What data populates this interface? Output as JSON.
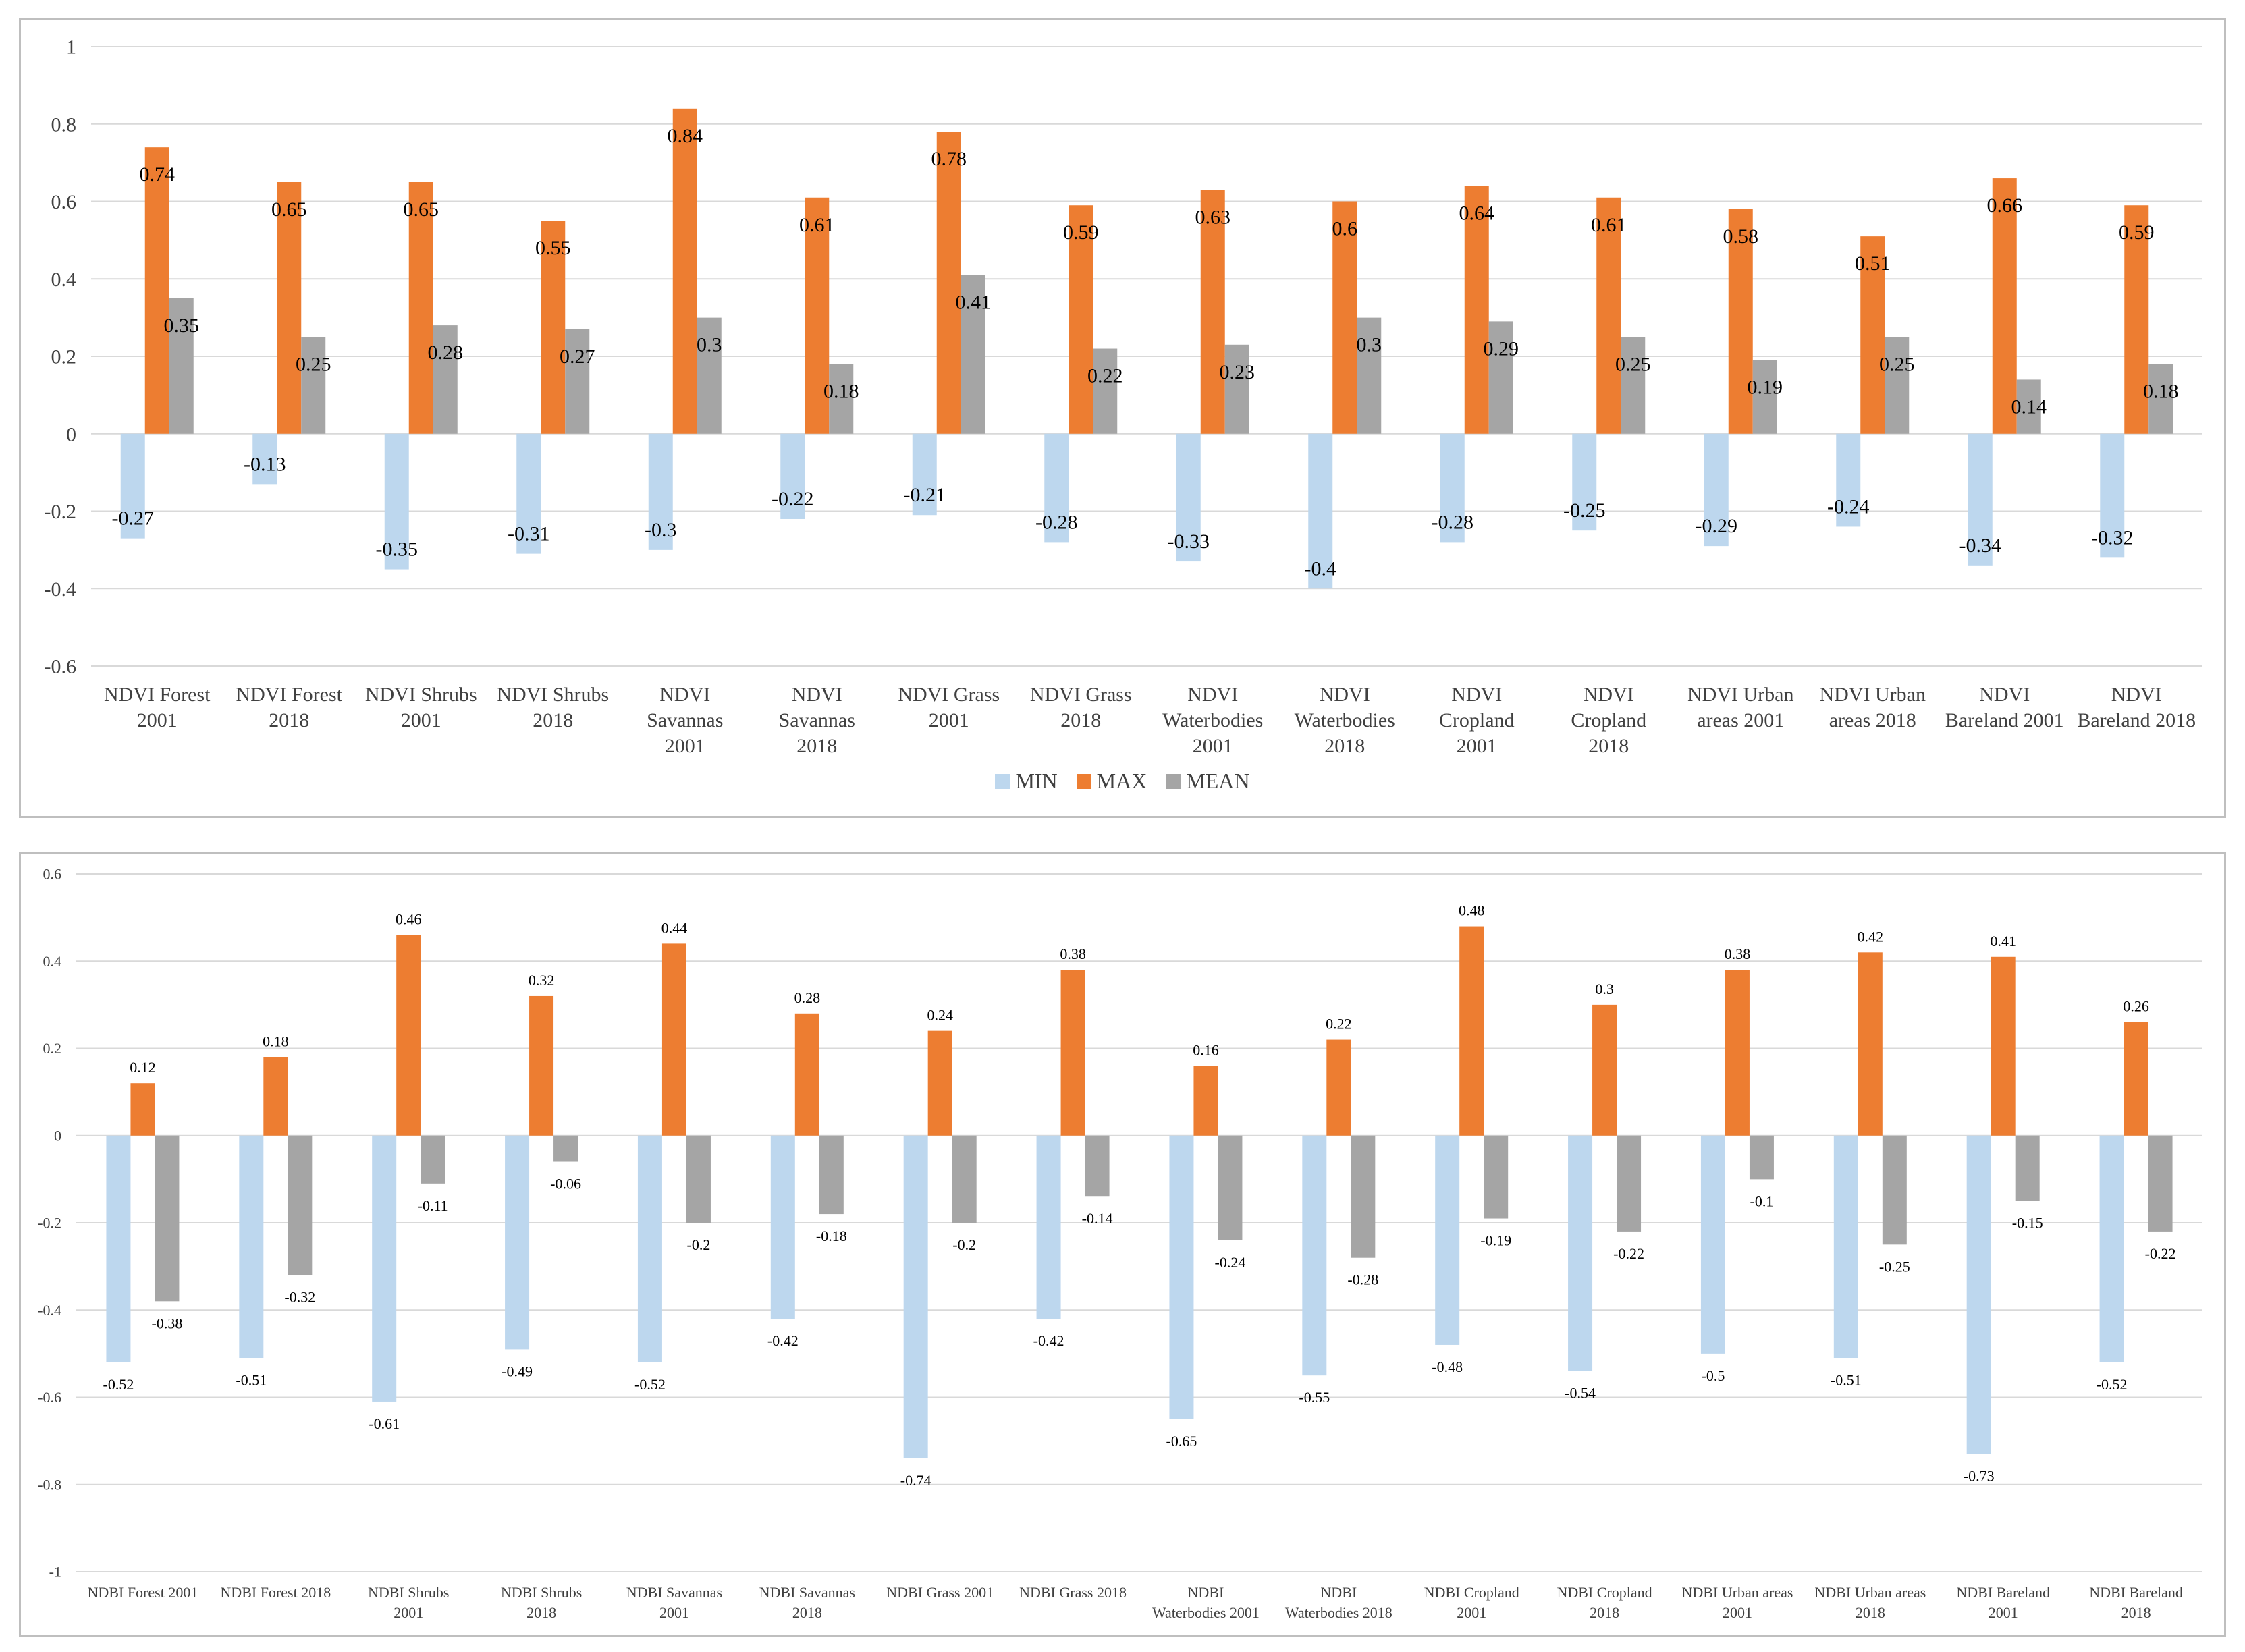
{
  "colors": {
    "min": "#bdd7ee",
    "max": "#ed7d31",
    "mean": "#a5a5a5",
    "grid": "#d9d9d9",
    "text": "#404040"
  },
  "chart_data": [
    {
      "type": "bar",
      "title": "",
      "xlabel": "",
      "ylabel": "",
      "ylim": [
        -0.6,
        1
      ],
      "yticks": [
        "1",
        "0.8",
        "0.6",
        "0.4",
        "0.2",
        "0",
        "-0.2",
        "-0.4",
        "-0.6"
      ],
      "ytick_values": [
        1,
        0.8,
        0.6,
        0.4,
        0.2,
        0,
        -0.2,
        -0.4,
        -0.6
      ],
      "grid": true,
      "legend_position": "bottom",
      "categories": [
        [
          "NDVI Forest",
          "2001"
        ],
        [
          "NDVI Forest",
          "2018"
        ],
        [
          "NDVI Shrubs",
          "2001"
        ],
        [
          "NDVI Shrubs",
          "2018"
        ],
        [
          "NDVI",
          "Savannas",
          "2001"
        ],
        [
          "NDVI",
          "Savannas",
          "2018"
        ],
        [
          "NDVI Grass",
          "2001"
        ],
        [
          "NDVI Grass",
          "2018"
        ],
        [
          "NDVI",
          "Waterbodies",
          "2001"
        ],
        [
          "NDVI",
          "Waterbodies",
          "2018"
        ],
        [
          "NDVI",
          "Cropland",
          "2001"
        ],
        [
          "NDVI",
          "Cropland",
          "2018"
        ],
        [
          "NDVI Urban",
          "areas 2001"
        ],
        [
          "NDVI Urban",
          "areas 2018"
        ],
        [
          "NDVI",
          "Bareland 2001"
        ],
        [
          "NDVI",
          "Bareland 2018"
        ]
      ],
      "series": [
        {
          "name": "MIN",
          "values": [
            -0.27,
            -0.13,
            -0.35,
            -0.31,
            -0.3,
            -0.22,
            -0.21,
            -0.28,
            -0.33,
            -0.4,
            -0.28,
            -0.25,
            -0.29,
            -0.24,
            -0.34,
            -0.32
          ]
        },
        {
          "name": "MAX",
          "values": [
            0.74,
            0.65,
            0.65,
            0.55,
            0.84,
            0.61,
            0.78,
            0.59,
            0.63,
            0.6,
            0.64,
            0.61,
            0.58,
            0.51,
            0.66,
            0.59
          ]
        },
        {
          "name": "MEAN",
          "values": [
            0.35,
            0.25,
            0.28,
            0.27,
            0.3,
            0.18,
            0.41,
            0.22,
            0.23,
            0.3,
            0.29,
            0.25,
            0.19,
            0.25,
            0.14,
            0.18
          ]
        }
      ]
    },
    {
      "type": "bar",
      "title": "",
      "xlabel": "",
      "ylabel": "",
      "ylim": [
        -1,
        0.6
      ],
      "yticks": [
        "0.6",
        "0.4",
        "0.2",
        "0",
        "-0.2",
        "-0.4",
        "-0.6",
        "-0.8",
        "-1"
      ],
      "ytick_values": [
        0.6,
        0.4,
        0.2,
        0,
        -0.2,
        -0.4,
        -0.6,
        -0.8,
        -1
      ],
      "grid": true,
      "legend_position": "none",
      "categories": [
        [
          "NDBI Forest 2001"
        ],
        [
          "NDBI Forest 2018"
        ],
        [
          "NDBI Shrubs",
          "2001"
        ],
        [
          "NDBI Shrubs",
          "2018"
        ],
        [
          "NDBI Savannas",
          "2001"
        ],
        [
          "NDBI Savannas",
          "2018"
        ],
        [
          "NDBI Grass 2001"
        ],
        [
          "NDBI Grass 2018"
        ],
        [
          "NDBI",
          "Waterbodies 2001"
        ],
        [
          "NDBI",
          "Waterbodies 2018"
        ],
        [
          "NDBI Cropland",
          "2001"
        ],
        [
          "NDBI Cropland",
          "2018"
        ],
        [
          "NDBI Urban areas",
          "2001"
        ],
        [
          "NDBI Urban areas",
          "2018"
        ],
        [
          "NDBI Bareland",
          "2001"
        ],
        [
          "NDBI Bareland",
          "2018"
        ]
      ],
      "series": [
        {
          "name": "MIN",
          "values": [
            -0.52,
            -0.51,
            -0.61,
            -0.49,
            -0.52,
            -0.42,
            -0.74,
            -0.42,
            -0.65,
            -0.55,
            -0.48,
            -0.54,
            -0.5,
            -0.51,
            -0.73,
            -0.52
          ]
        },
        {
          "name": "MAX",
          "values": [
            0.12,
            0.18,
            0.46,
            0.32,
            0.44,
            0.28,
            0.24,
            0.38,
            0.16,
            0.22,
            0.48,
            0.3,
            0.38,
            0.42,
            0.41,
            0.26
          ]
        },
        {
          "name": "MEAN",
          "values": [
            -0.38,
            -0.32,
            -0.11,
            -0.06,
            -0.2,
            -0.18,
            -0.2,
            -0.14,
            -0.24,
            -0.28,
            -0.19,
            -0.22,
            -0.1,
            -0.25,
            -0.15,
            -0.22
          ]
        }
      ]
    }
  ]
}
